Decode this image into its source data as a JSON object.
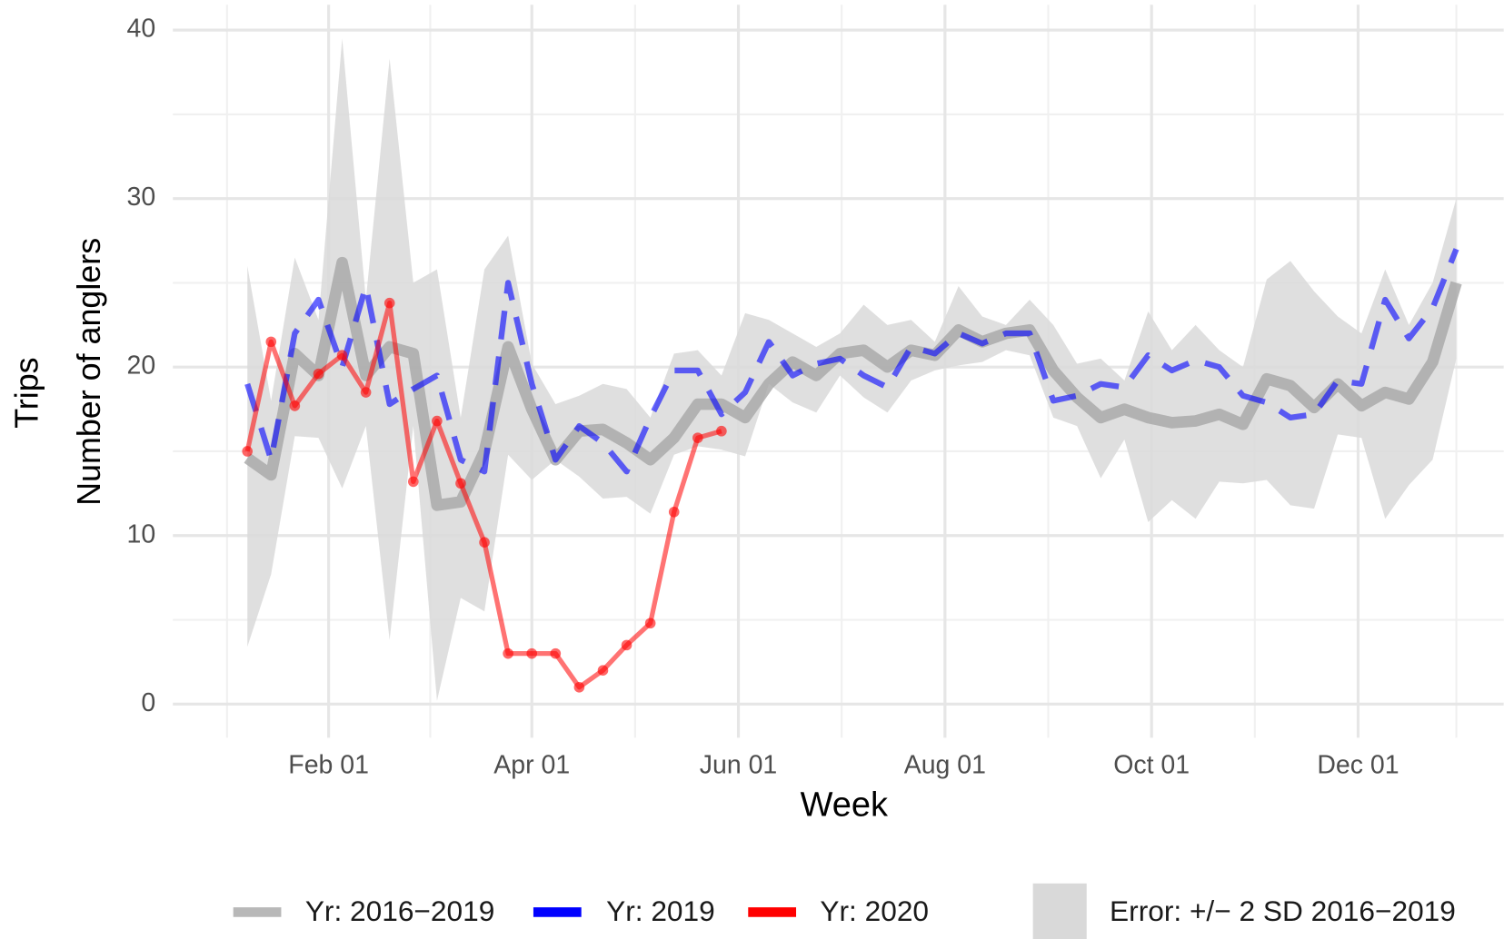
{
  "chart_data": {
    "type": "line",
    "x_label": "Week",
    "y_label": "Number of anglers",
    "y_label_2": "Trips",
    "x": [
      7,
      14,
      21,
      28,
      35,
      42,
      49,
      56,
      63,
      70,
      77,
      84,
      91,
      98,
      105,
      112,
      119,
      126,
      133,
      140,
      147,
      154,
      161,
      168,
      175,
      182,
      189,
      196,
      203,
      210,
      217,
      224,
      231,
      238,
      245,
      252,
      259,
      266,
      273,
      280,
      287,
      294,
      301,
      308,
      315,
      322,
      329,
      336,
      343,
      350,
      357,
      364
    ],
    "band": {
      "name": "Error: +/− 2 SD 2016−2019",
      "color": "#d9d9d9",
      "upper": [
        26,
        18,
        26.5,
        22.8,
        39.5,
        24,
        38.3,
        25,
        25.8,
        17,
        25.8,
        27.8,
        20.2,
        17.8,
        18.3,
        19,
        18.7,
        17,
        20.8,
        21,
        19.5,
        23.2,
        22.8,
        22,
        21.2,
        22,
        23.7,
        22.5,
        22.8,
        21.5,
        24.8,
        23,
        22.5,
        24,
        22.5,
        20.2,
        20.5,
        19.2,
        23.3,
        21,
        22.5,
        21,
        20,
        25.2,
        26.3,
        24.5,
        23,
        22,
        25.8,
        22.5,
        25,
        30
      ],
      "lower": [
        3.4,
        7.7,
        15.9,
        15.8,
        12.8,
        16.5,
        3.8,
        16.5,
        0.2,
        6.3,
        5.5,
        14.8,
        13.3,
        14.5,
        13.5,
        12.2,
        12.3,
        11.3,
        14.8,
        15.3,
        15.1,
        14.7,
        19,
        17.9,
        17.3,
        19.5,
        18.2,
        17.3,
        19.2,
        19.8,
        20.1,
        20.3,
        21,
        20.7,
        17,
        16.5,
        13.4,
        15.7,
        10.8,
        12.1,
        11,
        13.2,
        13.1,
        13.3,
        11.8,
        11.6,
        16,
        15.8,
        11,
        13,
        14.5,
        20.5
      ]
    },
    "series": [
      {
        "name": "Yr: 2016−2019",
        "color": "#a6a6a6",
        "style": "solid",
        "values": [
          14.6,
          13.6,
          20.8,
          19.5,
          26.2,
          19.5,
          21.2,
          20.8,
          11.8,
          12,
          15,
          21.2,
          17.5,
          14.5,
          16.2,
          16.3,
          15.5,
          14.5,
          15.8,
          17.8,
          17.8,
          17,
          19,
          20.3,
          19.5,
          20.8,
          21,
          20,
          21,
          20.7,
          22.2,
          21.5,
          22,
          22.2,
          19.8,
          18.2,
          17,
          17.5,
          17,
          16.7,
          16.8,
          17.2,
          16.6,
          19.3,
          18.9,
          17.6,
          19,
          17.7,
          18.5,
          18.1,
          20.3,
          25
        ]
      },
      {
        "name": "Yr: 2019",
        "color": "#0000ff",
        "style": "dashed",
        "values": [
          19,
          14.5,
          22,
          24,
          20,
          24.8,
          17.8,
          18.7,
          19.5,
          14.5,
          13.8,
          25,
          19,
          14.5,
          16.5,
          15.5,
          13.8,
          17,
          19.8,
          19.8,
          17.2,
          18.5,
          21.5,
          19.5,
          20.2,
          20.5,
          19.5,
          18.8,
          21.2,
          20.8,
          22,
          21.4,
          22,
          22,
          18,
          18.3,
          19,
          18.8,
          20.7,
          19.8,
          20.4,
          20,
          18.3,
          17.9,
          17,
          17.2,
          19.2,
          19,
          24,
          21.7,
          23.5,
          27
        ]
      },
      {
        "name": "Yr: 2020",
        "color": "#ff0000",
        "style": "points",
        "values": [
          15,
          21.5,
          17.7,
          19.6,
          20.7,
          18.5,
          23.8,
          13.2,
          16.8,
          13.1,
          9.6,
          3,
          3,
          3,
          1,
          2,
          3.5,
          4.8,
          11.4,
          15.8,
          16.2,
          null,
          null,
          null,
          null,
          null,
          null,
          null,
          null,
          null,
          null,
          null,
          null,
          null,
          null,
          null,
          null,
          null,
          null,
          null,
          null,
          null,
          null,
          null,
          null,
          null,
          null,
          null,
          null,
          null,
          null,
          null
        ]
      }
    ],
    "xlim": [
      -15,
      378
    ],
    "xticks": [
      {
        "value": 31,
        "label": "Feb 01"
      },
      {
        "value": 91,
        "label": "Apr 01"
      },
      {
        "value": 152,
        "label": "Jun 01"
      },
      {
        "value": 213,
        "label": "Aug 01"
      },
      {
        "value": 274,
        "label": "Oct 01"
      },
      {
        "value": 335,
        "label": "Dec 01"
      }
    ],
    "xminorticks": [
      1,
      61,
      121.5,
      182.5,
      243.5,
      304.5,
      364
    ],
    "ylim": [
      -2,
      41.5
    ],
    "yticks": [
      0,
      10,
      20,
      30,
      40
    ],
    "yminorticks": [
      5,
      15,
      25,
      35
    ],
    "grid": true,
    "legend": "bottom"
  }
}
